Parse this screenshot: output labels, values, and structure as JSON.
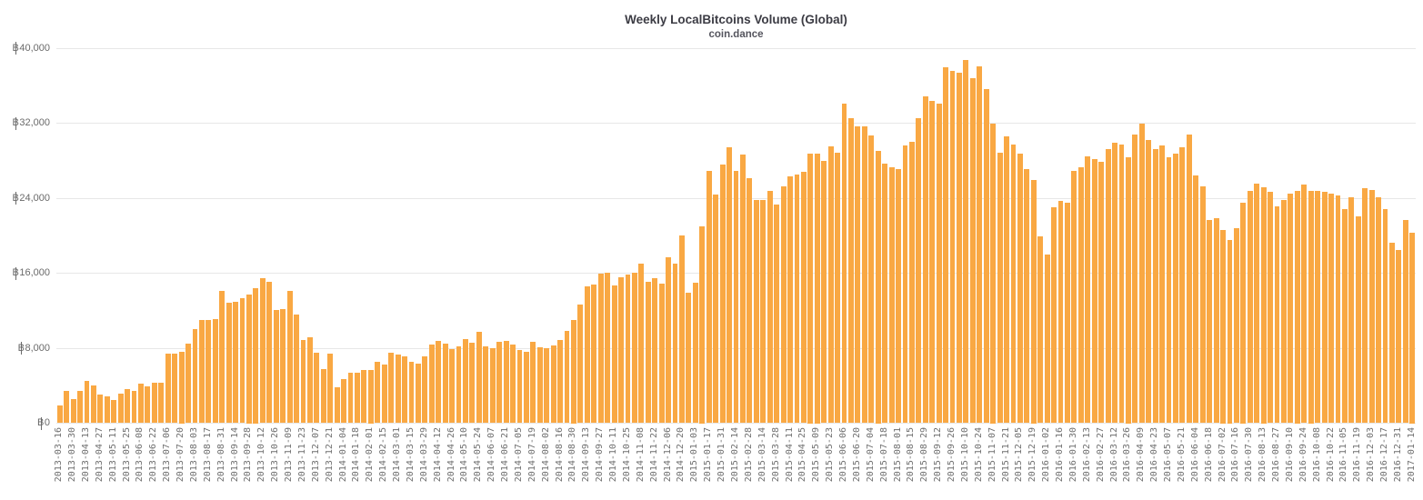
{
  "page": {
    "title": "Weekly LocalBitcoins Volume (Global)",
    "subtitle": "coin.dance"
  },
  "colors": {
    "bar": "#F9A843",
    "grid": "#E7E7E7",
    "title_text": "#3C3C44",
    "axis_text": "#6A6A6A"
  },
  "y_axis": {
    "ticks": [
      {
        "value": 0,
        "label": "฿0"
      },
      {
        "value": 8000,
        "label": "฿8,000"
      },
      {
        "value": 16000,
        "label": "฿16,000"
      },
      {
        "value": 24000,
        "label": "฿24,000"
      },
      {
        "value": 32000,
        "label": "฿32,000"
      },
      {
        "value": 40000,
        "label": "฿40,000"
      }
    ]
  },
  "chart_data": {
    "type": "bar",
    "title": "Weekly LocalBitcoins Volume (Global)",
    "subtitle": "coin.dance",
    "unit": "฿",
    "ylim": [
      0,
      40000
    ],
    "grid": "horizontal",
    "legend": "none",
    "bar_color": "#F9A843",
    "x_label_every_n_bars": 2,
    "x_tick_labels": [
      "2013-03-16",
      "2013-03-30",
      "2013-04-13",
      "2013-04-27",
      "2013-05-11",
      "2013-05-25",
      "2013-06-08",
      "2013-06-22",
      "2013-07-06",
      "2013-07-20",
      "2013-08-03",
      "2013-08-17",
      "2013-08-31",
      "2013-09-14",
      "2013-09-28",
      "2013-10-12",
      "2013-10-26",
      "2013-11-09",
      "2013-11-23",
      "2013-12-07",
      "2013-12-21",
      "2014-01-04",
      "2014-01-18",
      "2014-02-01",
      "2014-02-15",
      "2014-03-01",
      "2014-03-15",
      "2014-03-29",
      "2014-04-12",
      "2014-04-26",
      "2014-05-10",
      "2014-05-24",
      "2014-06-07",
      "2014-06-21",
      "2014-07-05",
      "2014-07-19",
      "2014-08-02",
      "2014-08-16",
      "2014-08-30",
      "2014-09-13",
      "2014-09-27",
      "2014-10-11",
      "2014-10-25",
      "2014-11-08",
      "2014-11-22",
      "2014-12-06",
      "2014-12-20",
      "2015-01-03",
      "2015-01-17",
      "2015-01-31",
      "2015-02-14",
      "2015-02-28",
      "2015-03-14",
      "2015-03-28",
      "2015-04-11",
      "2015-04-25",
      "2015-05-09",
      "2015-05-23",
      "2015-06-06",
      "2015-06-20",
      "2015-07-04",
      "2015-07-18",
      "2015-08-01",
      "2015-08-15",
      "2015-08-29",
      "2015-09-12",
      "2015-09-26",
      "2015-10-10",
      "2015-10-24",
      "2015-11-07",
      "2015-11-21",
      "2015-12-05",
      "2015-12-19",
      "2016-01-02",
      "2016-01-16",
      "2016-01-30",
      "2016-02-13",
      "2016-02-27",
      "2016-03-12",
      "2016-03-26",
      "2016-04-09",
      "2016-04-23",
      "2016-05-07",
      "2016-05-21",
      "2016-06-04",
      "2016-06-18",
      "2016-07-02",
      "2016-07-16",
      "2016-07-30",
      "2016-08-13",
      "2016-08-27",
      "2016-09-10",
      "2016-09-24",
      "2016-10-08",
      "2016-10-22",
      "2016-11-05",
      "2016-11-19",
      "2016-12-03",
      "2016-12-17",
      "2016-12-31",
      "2017-01-14"
    ],
    "values": [
      1930,
      3420,
      2530,
      3480,
      4465,
      3990,
      3010,
      2880,
      2440,
      3165,
      3610,
      3420,
      4245,
      3925,
      4305,
      4305,
      7380,
      7390,
      7600,
      8515,
      10015,
      11040,
      11040,
      11135,
      14080,
      12895,
      12990,
      13315,
      13700,
      14400,
      15455,
      15040,
      12095,
      12160,
      14080,
      11560,
      8865,
      9185,
      7475,
      5795,
      7440,
      3830,
      4685,
      5385,
      5385,
      5635,
      5700,
      6525,
      6270,
      7475,
      7315,
      7155,
      6525,
      6365,
      7125,
      8390,
      8805,
      8455,
      7915,
      8235,
      8930,
      8615,
      9720,
      8170,
      8010,
      8710,
      8805,
      8425,
      7790,
      7630,
      8710,
      8105,
      8010,
      8295,
      8835,
      9815,
      11000,
      12665,
      14565,
      14820,
      15930,
      16085,
      14660,
      15610,
      15835,
      16025,
      17035,
      15040,
      15515,
      14890,
      17670,
      16975,
      20045,
      13935,
      14980,
      21000,
      26880,
      24415,
      27620,
      29445,
      26910,
      28640,
      26110,
      23835,
      23835,
      24740,
      23355,
      25220,
      26335,
      26495,
      26815,
      28800,
      28800,
      27935,
      29535,
      28895,
      34110,
      32575,
      31615,
      31680,
      30720,
      29000,
      27680,
      27295,
      27135,
      29635,
      30020,
      32515,
      34820,
      34340,
      34110,
      37920,
      37535,
      37375,
      38715,
      36835,
      38080,
      35680,
      32000,
      28895,
      30555,
      29690,
      28735,
      27070,
      25950,
      19940,
      18020,
      23040,
      23680,
      23520,
      26880,
      27295,
      28415,
      28160,
      27840,
      29215,
      29920,
      29690,
      28350,
      30815,
      31940,
      30175,
      29280,
      29635,
      28320,
      28735,
      29440,
      30815,
      26430,
      25275,
      21695,
      21855,
      20600,
      19500,
      20830,
      23550,
      24735,
      25535,
      25150,
      24670,
      23135,
      23840,
      24510,
      24800,
      25440,
      24800,
      24735,
      24640,
      24480,
      24255,
      22815,
      24095,
      22080,
      25055,
      24895,
      24095,
      22815,
      19295,
      18430,
      21695,
      20350
    ]
  }
}
